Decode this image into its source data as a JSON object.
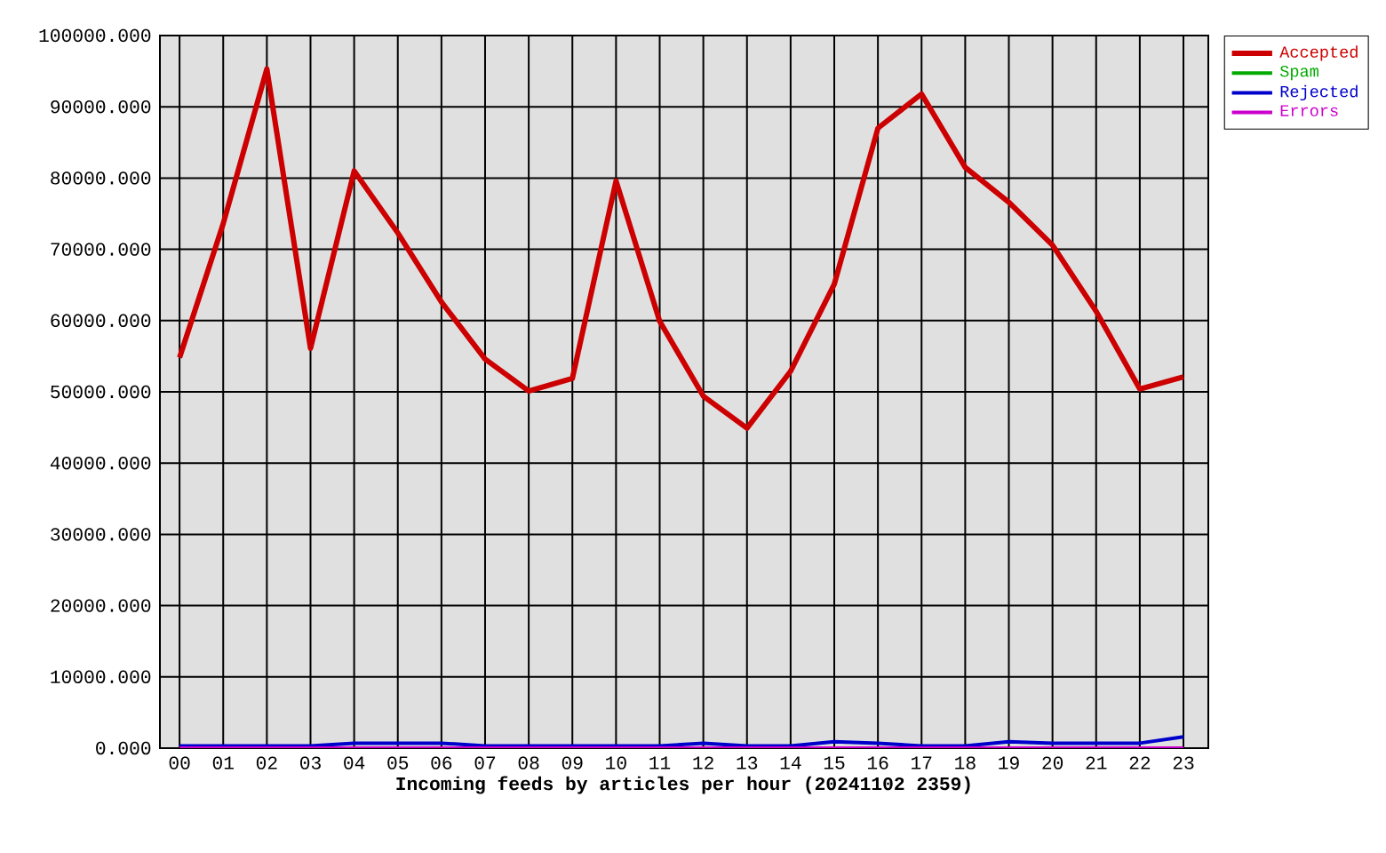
{
  "chart_data": {
    "type": "line",
    "xlabel": "Incoming feeds by articles per hour (20241102 2359)",
    "categories": [
      "00",
      "01",
      "02",
      "03",
      "04",
      "05",
      "06",
      "07",
      "08",
      "09",
      "10",
      "11",
      "12",
      "13",
      "14",
      "15",
      "16",
      "17",
      "18",
      "19",
      "20",
      "21",
      "22",
      "23"
    ],
    "series": [
      {
        "name": "Accepted",
        "color": "#cc0000",
        "values": [
          54800,
          73600,
          95300,
          56100,
          81000,
          72300,
          62600,
          54600,
          50100,
          51900,
          79600,
          59900,
          49400,
          44900,
          52900,
          65100,
          87000,
          91800,
          81500,
          76600,
          70600,
          61300,
          50400,
          52100
        ]
      },
      {
        "name": "Spam",
        "color": "#00aa00",
        "values": [
          null,
          null,
          null,
          null,
          null,
          null,
          null,
          null,
          null,
          null,
          null,
          null,
          null,
          null,
          null,
          null,
          null,
          null,
          null,
          null,
          null,
          null,
          null,
          null
        ]
      },
      {
        "name": "Rejected",
        "color": "#0000cc",
        "values": [
          300,
          300,
          300,
          300,
          700,
          700,
          700,
          300,
          300,
          300,
          300,
          300,
          700,
          300,
          300,
          900,
          700,
          300,
          300,
          900,
          700,
          700,
          700,
          1600
        ]
      },
      {
        "name": "Errors",
        "color": "#cc00cc",
        "values": [
          0,
          0,
          0,
          0,
          0,
          0,
          0,
          0,
          0,
          0,
          0,
          0,
          0,
          0,
          0,
          0,
          0,
          0,
          0,
          0,
          0,
          0,
          0,
          0
        ]
      }
    ],
    "ylim": [
      0,
      100000
    ],
    "yticks": [
      {
        "value": 0,
        "label": "0.000"
      },
      {
        "value": 10000,
        "label": "10000.000"
      },
      {
        "value": 20000,
        "label": "20000.000"
      },
      {
        "value": 30000,
        "label": "30000.000"
      },
      {
        "value": 40000,
        "label": "40000.000"
      },
      {
        "value": 50000,
        "label": "50000.000"
      },
      {
        "value": 60000,
        "label": "60000.000"
      },
      {
        "value": 70000,
        "label": "70000.000"
      },
      {
        "value": 80000,
        "label": "80000.000"
      },
      {
        "value": 90000,
        "label": "90000.000"
      },
      {
        "value": 100000,
        "label": "100000.000"
      }
    ],
    "grid": true,
    "legend": "top right",
    "marker": "none",
    "line_style": "solid"
  }
}
